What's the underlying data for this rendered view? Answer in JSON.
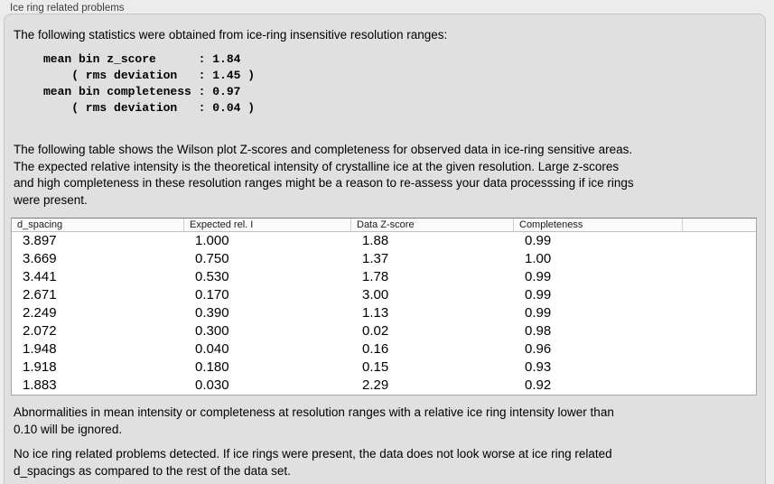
{
  "panel": {
    "title": "Ice ring related problems"
  },
  "intro": "The following statistics were obtained from ice-ring insensitive resolution ranges:",
  "stats_block": "mean bin z_score      : 1.84\n    ( rms deviation   : 1.45 )\nmean bin completeness : 0.97\n    ( rms deviation   : 0.04 )",
  "description_lines": [
    "The following table shows the Wilson plot Z-scores and completeness for observed data in ice-ring sensitive areas.",
    "The expected relative intensity is the theoretical intensity of crystalline ice at the given resolution. Large z-scores",
    "and high completeness in these resolution ranges might be a reason to re-assess your data processsing if ice rings",
    "were present."
  ],
  "table": {
    "headers": [
      "d_spacing",
      "Expected rel. I",
      "Data Z-score",
      "Completeness",
      ""
    ],
    "rows": [
      [
        "3.897",
        "1.000",
        "1.88",
        "0.99"
      ],
      [
        "3.669",
        "0.750",
        "1.37",
        "1.00"
      ],
      [
        "3.441",
        "0.530",
        "1.78",
        "0.99"
      ],
      [
        "2.671",
        "0.170",
        "3.00",
        "0.99"
      ],
      [
        "2.249",
        "0.390",
        "1.13",
        "0.99"
      ],
      [
        "2.072",
        "0.300",
        "0.02",
        "0.98"
      ],
      [
        "1.948",
        "0.040",
        "0.16",
        "0.96"
      ],
      [
        "1.918",
        "0.180",
        "0.15",
        "0.93"
      ],
      [
        "1.883",
        "0.030",
        "2.29",
        "0.92"
      ]
    ]
  },
  "note_lines": [
    "Abnormalities in mean intensity or completeness at resolution ranges with a relative ice ring intensity lower than",
    "0.10 will be ignored."
  ],
  "conclusion_lines": [
    "No ice ring related problems detected. If ice rings were present, the data does not look worse at ice ring related",
    "d_spacings as compared to the rest of the data set."
  ],
  "colors": {
    "page_bg": "#ececec",
    "panel_bg": "#e0e0e0",
    "panel_border": "#c6c6c6",
    "table_bg": "#ffffff",
    "table_border": "#a6a6a6",
    "header_bg": "#fafafa"
  }
}
